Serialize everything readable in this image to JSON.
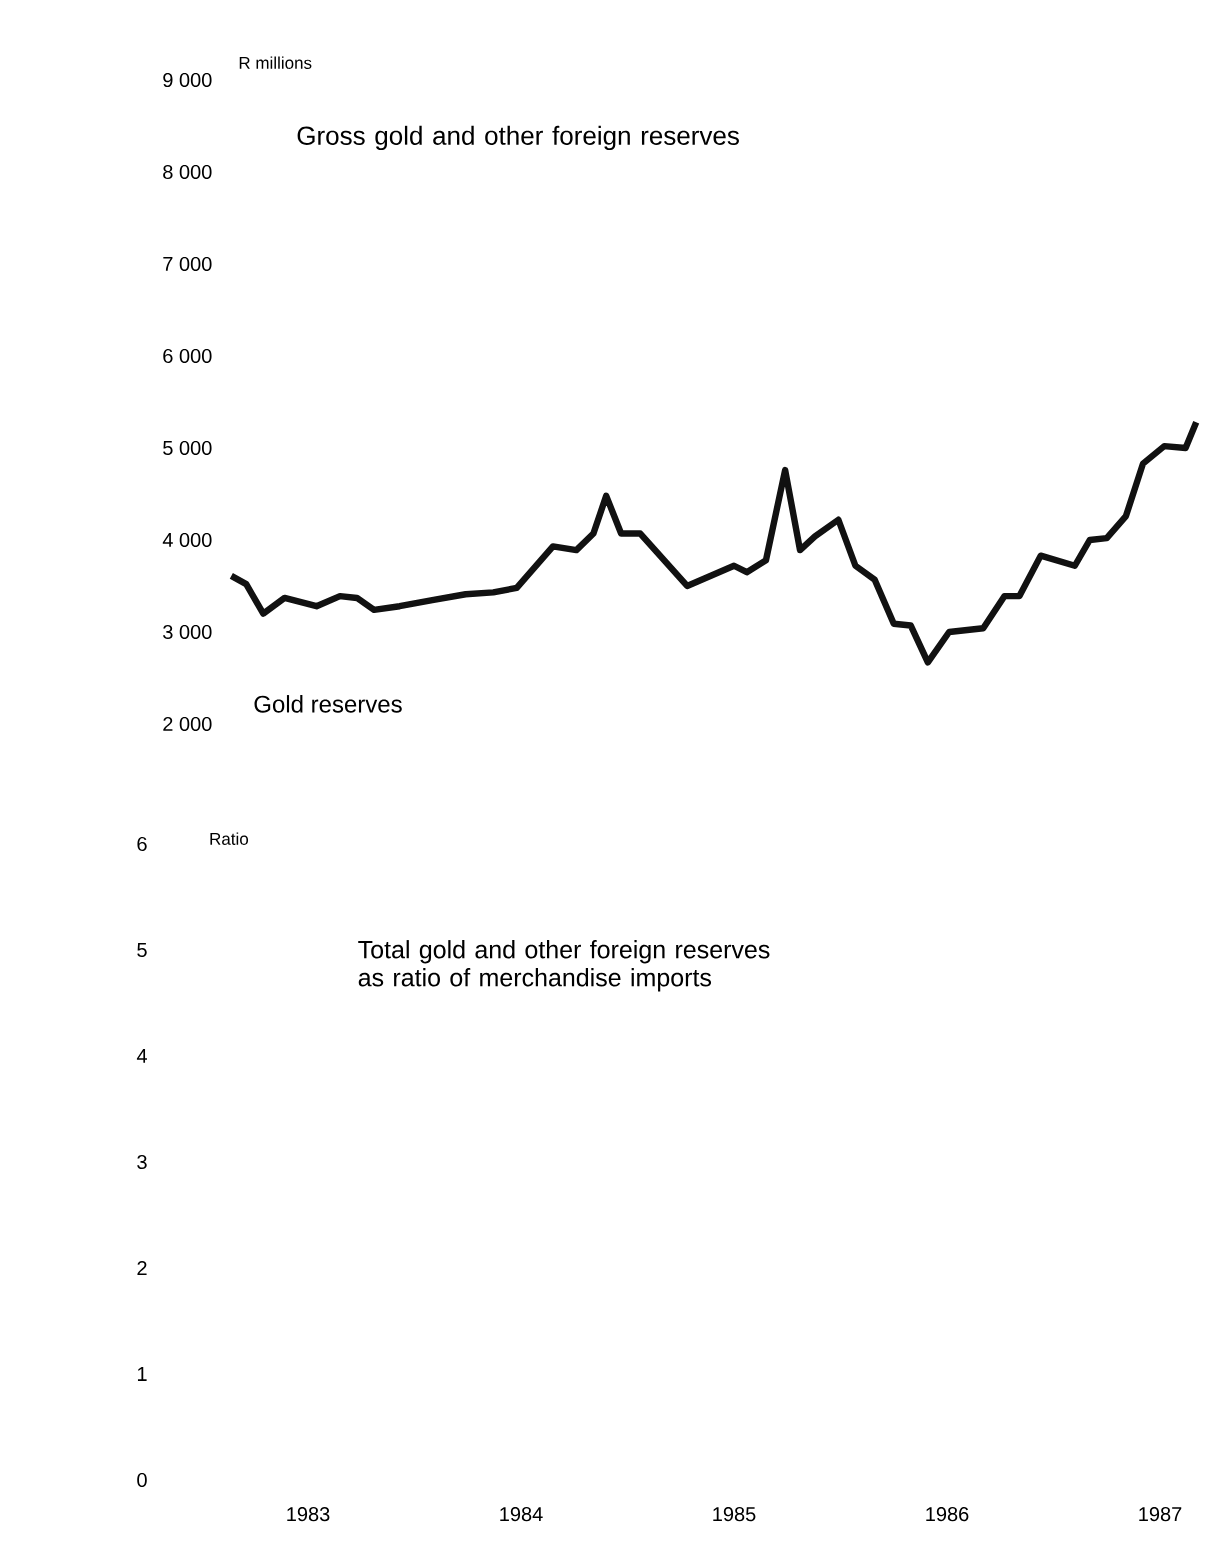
{
  "chart_data": [
    {
      "type": "line",
      "title": "Gross gold and other foreign reserves",
      "ylabel": "R millions",
      "xticks": [
        1983,
        1984,
        1985,
        1986,
        1987
      ],
      "ylim": [
        2000,
        9000
      ],
      "yticks": [
        {
          "value": 2000,
          "label": "2 000"
        },
        {
          "value": 3000,
          "label": "3 000"
        },
        {
          "value": 4000,
          "label": "4 000"
        },
        {
          "value": 5000,
          "label": "5 000"
        },
        {
          "value": 6000,
          "label": "6 000"
        },
        {
          "value": 7000,
          "label": "7 000"
        },
        {
          "value": 8000,
          "label": "8 000"
        },
        {
          "value": 9000,
          "label": "9 000"
        }
      ],
      "tick_labels": "y",
      "series": [
        {
          "name": "Gold reserves",
          "color": "#111111",
          "x": [
            1982.64,
            1982.71,
            1982.79,
            1982.89,
            1983.04,
            1983.15,
            1983.23,
            1983.31,
            1983.43,
            1983.59,
            1983.74,
            1983.87,
            1983.98,
            1984.15,
            1984.26,
            1984.34,
            1984.4,
            1984.47,
            1984.56,
            1984.78,
            1985.0,
            1985.06,
            1985.15,
            1985.24,
            1985.31,
            1985.38,
            1985.49,
            1985.57,
            1985.66,
            1985.75,
            1985.83,
            1985.91,
            1986.01,
            1986.17,
            1986.27,
            1986.34,
            1986.44,
            1986.6,
            1986.67,
            1986.75,
            1986.84,
            1986.92,
            1987.02,
            1987.12,
            1987.17
          ],
          "values": [
            3610,
            3520,
            3200,
            3370,
            3280,
            3390,
            3370,
            3240,
            3280,
            3350,
            3410,
            3430,
            3480,
            3930,
            3890,
            4070,
            4480,
            4070,
            4070,
            3500,
            3720,
            3650,
            3780,
            4760,
            3890,
            4040,
            4220,
            3720,
            3570,
            3090,
            3070,
            2670,
            3000,
            3040,
            3390,
            3390,
            3830,
            3720,
            4000,
            4020,
            4260,
            4830,
            5020,
            5000,
            5280
          ]
        }
      ]
    },
    {
      "type": "line",
      "title": "Total gold and other foreign reserves as ratio of merchandise imports",
      "ylabel": "Ratio",
      "xlim": [
        1983,
        1987
      ],
      "xticks": [
        1983,
        1984,
        1985,
        1986,
        1987
      ],
      "ylim": [
        0,
        6
      ],
      "yticks": [
        0,
        1,
        2,
        3,
        4,
        5,
        6
      ]
    }
  ]
}
